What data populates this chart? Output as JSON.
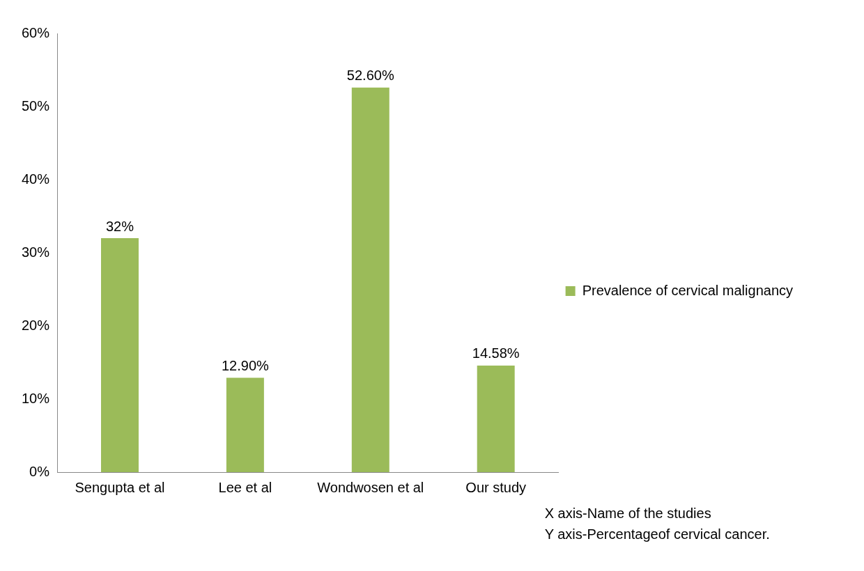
{
  "chart_data": {
    "type": "bar",
    "categories": [
      "Sengupta et al",
      "Lee et al",
      "Wondwosen et al",
      "Our study"
    ],
    "series": [
      {
        "name": "Prevalence of cervical malignancy",
        "color": "#9bbb59",
        "values": [
          32,
          12.9,
          52.6,
          14.58
        ],
        "value_labels": [
          "32%",
          "12.90%",
          "52.60%",
          "14.58%"
        ]
      }
    ],
    "ylim": [
      0,
      60
    ],
    "yticks": [
      {
        "value": 0,
        "label": "0%"
      },
      {
        "value": 10,
        "label": "10%"
      },
      {
        "value": 20,
        "label": "20%"
      },
      {
        "value": 30,
        "label": "30%"
      },
      {
        "value": 40,
        "label": "40%"
      },
      {
        "value": 50,
        "label": "50%"
      },
      {
        "value": 60,
        "label": "60%"
      }
    ],
    "grid": false,
    "legend": "right",
    "annotations": [
      "X axis-Name of the studies",
      "Y axis-Percentageof cervical cancer."
    ]
  }
}
